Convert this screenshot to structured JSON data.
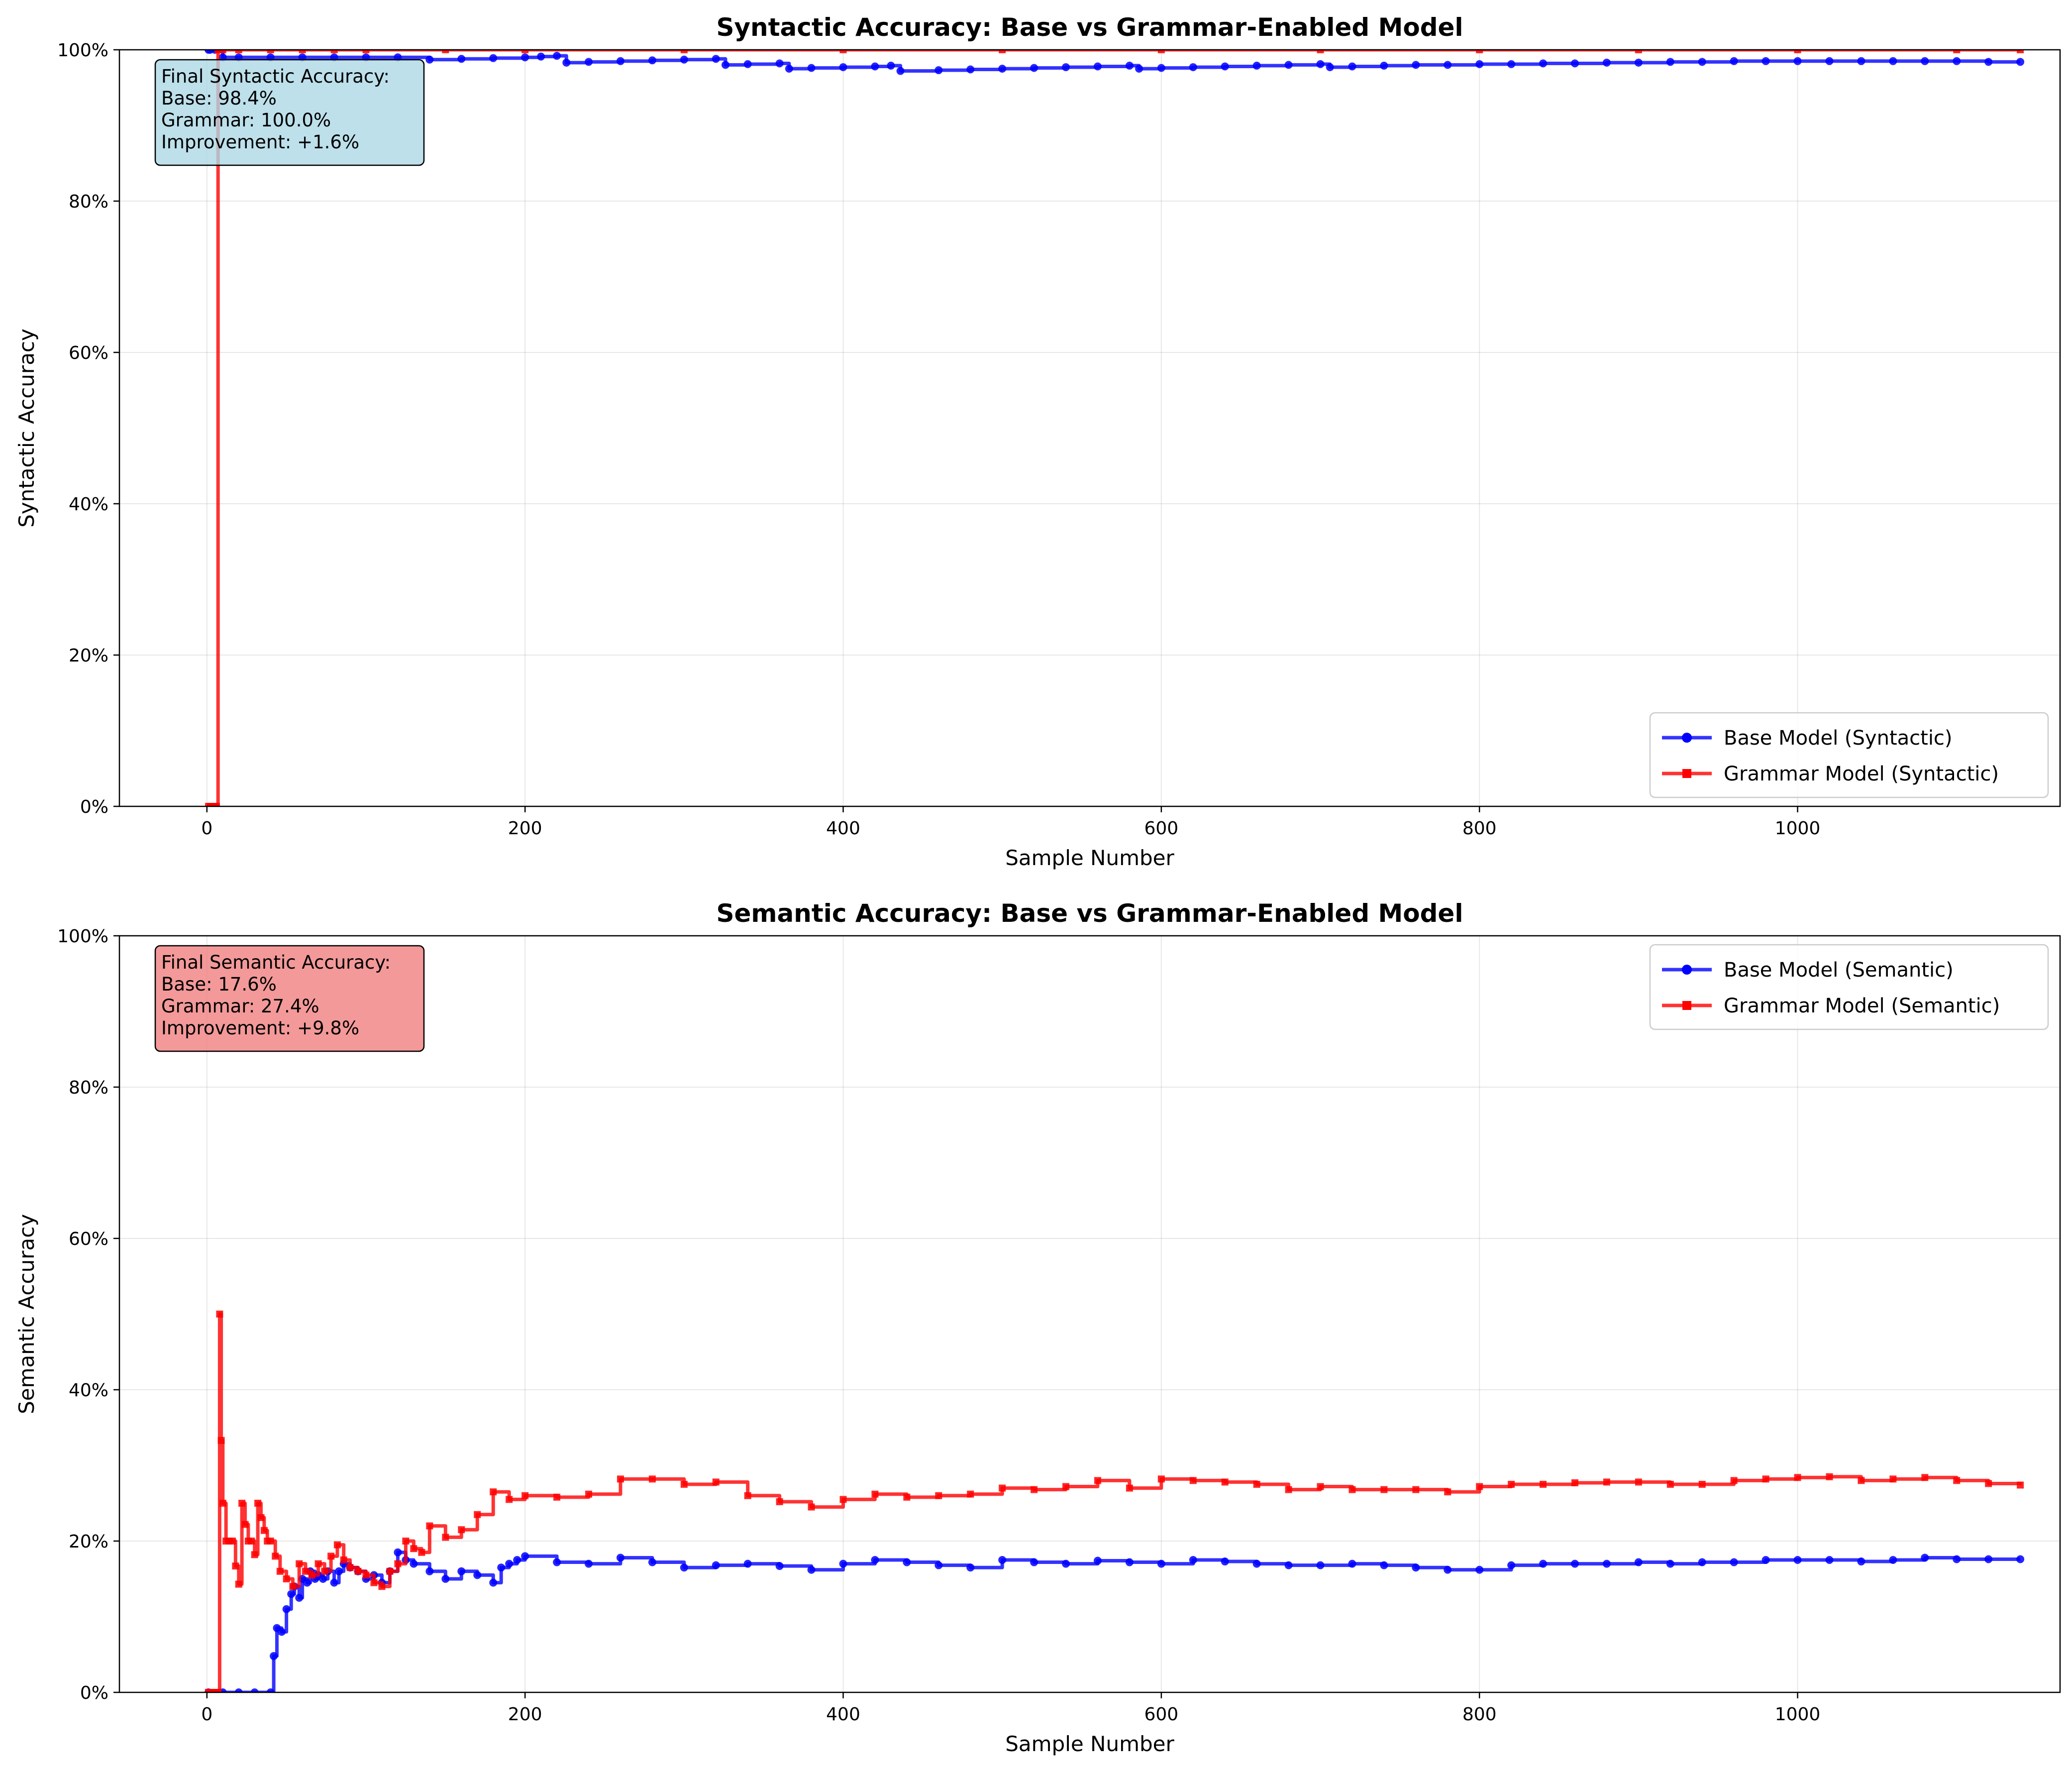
{
  "chart_data": [
    {
      "type": "line",
      "title": "Syntactic Accuracy: Base vs Grammar-Enabled Model",
      "xlabel": "Sample Number",
      "ylabel": "Syntactic Accuracy",
      "xlim": [
        -55,
        1165
      ],
      "ylim": [
        0,
        1
      ],
      "xticks": [
        0,
        200,
        400,
        600,
        800,
        1000
      ],
      "xtick_labels": [
        "0",
        "200",
        "400",
        "600",
        "800",
        "1000"
      ],
      "yticks": [
        0,
        0.2,
        0.4,
        0.6,
        0.8,
        1.0
      ],
      "ytick_labels": [
        "0%",
        "20%",
        "40%",
        "60%",
        "80%",
        "100%"
      ],
      "grid": true,
      "legend_position": "lower-right",
      "annotation": {
        "lines": [
          "Final Syntactic Accuracy:",
          "Base: 98.4%",
          "Grammar: 100.0%",
          "Improvement: +1.6%"
        ],
        "color": "#add8e6"
      },
      "series": [
        {
          "name": "Base Model (Syntactic)",
          "color": "#0000ff",
          "marker": "circle",
          "x": [
            1,
            2,
            5,
            10,
            20,
            40,
            60,
            80,
            100,
            120,
            140,
            160,
            180,
            200,
            210,
            220,
            226,
            240,
            260,
            280,
            300,
            320,
            326,
            340,
            360,
            366,
            380,
            400,
            420,
            430,
            436,
            460,
            480,
            500,
            520,
            540,
            560,
            580,
            586,
            600,
            620,
            640,
            660,
            680,
            700,
            706,
            720,
            740,
            760,
            780,
            800,
            820,
            840,
            860,
            880,
            900,
            920,
            940,
            960,
            980,
            1000,
            1020,
            1040,
            1060,
            1080,
            1100,
            1120,
            1140
          ],
          "y": [
            1.0,
            1.0,
            1.0,
            0.99,
            0.99,
            0.99,
            0.99,
            0.99,
            0.99,
            0.99,
            0.987,
            0.988,
            0.989,
            0.99,
            0.991,
            0.992,
            0.983,
            0.984,
            0.985,
            0.986,
            0.987,
            0.988,
            0.98,
            0.981,
            0.982,
            0.975,
            0.976,
            0.977,
            0.978,
            0.979,
            0.972,
            0.973,
            0.974,
            0.975,
            0.976,
            0.977,
            0.978,
            0.979,
            0.975,
            0.976,
            0.977,
            0.978,
            0.979,
            0.98,
            0.981,
            0.977,
            0.978,
            0.979,
            0.98,
            0.98,
            0.981,
            0.981,
            0.982,
            0.982,
            0.983,
            0.983,
            0.984,
            0.984,
            0.985,
            0.985,
            0.985,
            0.985,
            0.985,
            0.985,
            0.985,
            0.985,
            0.984,
            0.984
          ]
        },
        {
          "name": "Grammar Model (Syntactic)",
          "color": "#ff0000",
          "marker": "square",
          "x": [
            1,
            2,
            3,
            4,
            5,
            6,
            7,
            10,
            20,
            40,
            60,
            80,
            100,
            150,
            200,
            300,
            400,
            500,
            600,
            700,
            800,
            900,
            1000,
            1100,
            1140
          ],
          "y": [
            0,
            0,
            0,
            0,
            0,
            0,
            1.0,
            1.0,
            1.0,
            1.0,
            1.0,
            1.0,
            1.0,
            1.0,
            1.0,
            1.0,
            1.0,
            1.0,
            1.0,
            1.0,
            1.0,
            1.0,
            1.0,
            1.0,
            1.0
          ]
        }
      ]
    },
    {
      "type": "line",
      "title": "Semantic Accuracy: Base vs Grammar-Enabled Model",
      "xlabel": "Sample Number",
      "ylabel": "Semantic Accuracy",
      "xlim": [
        -55,
        1165
      ],
      "ylim": [
        0,
        1
      ],
      "xticks": [
        0,
        200,
        400,
        600,
        800,
        1000
      ],
      "xtick_labels": [
        "0",
        "200",
        "400",
        "600",
        "800",
        "1000"
      ],
      "yticks": [
        0,
        0.2,
        0.4,
        0.6,
        0.8,
        1.0
      ],
      "ytick_labels": [
        "0%",
        "20%",
        "40%",
        "60%",
        "80%",
        "100%"
      ],
      "grid": true,
      "legend_position": "upper-right",
      "annotation": {
        "lines": [
          "Final Semantic Accuracy:",
          "Base: 17.6%",
          "Grammar: 27.4%",
          "Improvement: +9.8%"
        ],
        "color": "#f08080"
      },
      "series": [
        {
          "name": "Base Model (Semantic)",
          "color": "#0000ff",
          "marker": "circle",
          "x": [
            1,
            10,
            20,
            30,
            40,
            42,
            44,
            47,
            50,
            53,
            55,
            58,
            60,
            63,
            65,
            68,
            70,
            73,
            76,
            80,
            83,
            86,
            90,
            95,
            100,
            105,
            110,
            115,
            120,
            125,
            130,
            140,
            150,
            160,
            170,
            180,
            185,
            190,
            195,
            200,
            220,
            240,
            260,
            280,
            300,
            320,
            340,
            360,
            380,
            400,
            420,
            440,
            460,
            480,
            500,
            520,
            540,
            560,
            580,
            600,
            620,
            640,
            660,
            680,
            700,
            720,
            740,
            760,
            780,
            800,
            820,
            840,
            860,
            880,
            900,
            920,
            940,
            960,
            980,
            1000,
            1020,
            1040,
            1060,
            1080,
            1100,
            1120,
            1140
          ],
          "y": [
            0,
            0,
            0,
            0,
            0,
            0.048,
            0.085,
            0.08,
            0.11,
            0.13,
            0.14,
            0.125,
            0.15,
            0.145,
            0.16,
            0.15,
            0.155,
            0.15,
            0.16,
            0.145,
            0.16,
            0.17,
            0.165,
            0.16,
            0.15,
            0.155,
            0.145,
            0.16,
            0.185,
            0.175,
            0.17,
            0.16,
            0.15,
            0.16,
            0.155,
            0.145,
            0.165,
            0.17,
            0.175,
            0.18,
            0.172,
            0.17,
            0.178,
            0.172,
            0.165,
            0.168,
            0.17,
            0.167,
            0.162,
            0.17,
            0.175,
            0.172,
            0.168,
            0.165,
            0.175,
            0.172,
            0.17,
            0.174,
            0.172,
            0.17,
            0.175,
            0.173,
            0.17,
            0.168,
            0.168,
            0.17,
            0.168,
            0.165,
            0.162,
            0.162,
            0.168,
            0.17,
            0.17,
            0.17,
            0.172,
            0.17,
            0.172,
            0.172,
            0.175,
            0.175,
            0.175,
            0.173,
            0.175,
            0.178,
            0.176,
            0.176,
            0.176
          ]
        },
        {
          "name": "Grammar Model (Semantic)",
          "color": "#ff0000",
          "marker": "square",
          "x": [
            1,
            2,
            3,
            4,
            5,
            6,
            7,
            8,
            9,
            10,
            12,
            14,
            16,
            18,
            20,
            22,
            24,
            26,
            28,
            30,
            32,
            34,
            36,
            38,
            40,
            43,
            46,
            50,
            54,
            58,
            62,
            66,
            70,
            74,
            78,
            82,
            86,
            90,
            95,
            100,
            105,
            110,
            115,
            120,
            125,
            130,
            135,
            140,
            150,
            160,
            170,
            180,
            190,
            200,
            220,
            240,
            260,
            280,
            300,
            320,
            340,
            360,
            380,
            400,
            420,
            440,
            460,
            480,
            500,
            520,
            540,
            560,
            580,
            600,
            620,
            640,
            660,
            680,
            700,
            720,
            740,
            760,
            780,
            800,
            820,
            840,
            860,
            880,
            900,
            920,
            940,
            960,
            980,
            1000,
            1020,
            1040,
            1060,
            1080,
            1100,
            1120,
            1140
          ],
          "y": [
            0,
            0,
            0,
            0,
            0,
            0,
            0,
            0.5,
            0.333,
            0.25,
            0.2,
            0.2,
            0.2,
            0.167,
            0.143,
            0.25,
            0.222,
            0.2,
            0.2,
            0.182,
            0.25,
            0.231,
            0.214,
            0.2,
            0.2,
            0.18,
            0.16,
            0.15,
            0.14,
            0.17,
            0.16,
            0.155,
            0.17,
            0.16,
            0.18,
            0.195,
            0.175,
            0.165,
            0.16,
            0.155,
            0.145,
            0.14,
            0.16,
            0.17,
            0.2,
            0.19,
            0.185,
            0.22,
            0.205,
            0.215,
            0.235,
            0.265,
            0.255,
            0.26,
            0.258,
            0.262,
            0.282,
            0.282,
            0.275,
            0.278,
            0.26,
            0.252,
            0.245,
            0.255,
            0.262,
            0.258,
            0.26,
            0.262,
            0.27,
            0.268,
            0.272,
            0.28,
            0.27,
            0.282,
            0.28,
            0.278,
            0.275,
            0.268,
            0.272,
            0.268,
            0.268,
            0.268,
            0.265,
            0.272,
            0.275,
            0.275,
            0.277,
            0.278,
            0.278,
            0.275,
            0.275,
            0.28,
            0.282,
            0.284,
            0.285,
            0.28,
            0.282,
            0.284,
            0.28,
            0.276,
            0.274
          ]
        }
      ]
    }
  ]
}
